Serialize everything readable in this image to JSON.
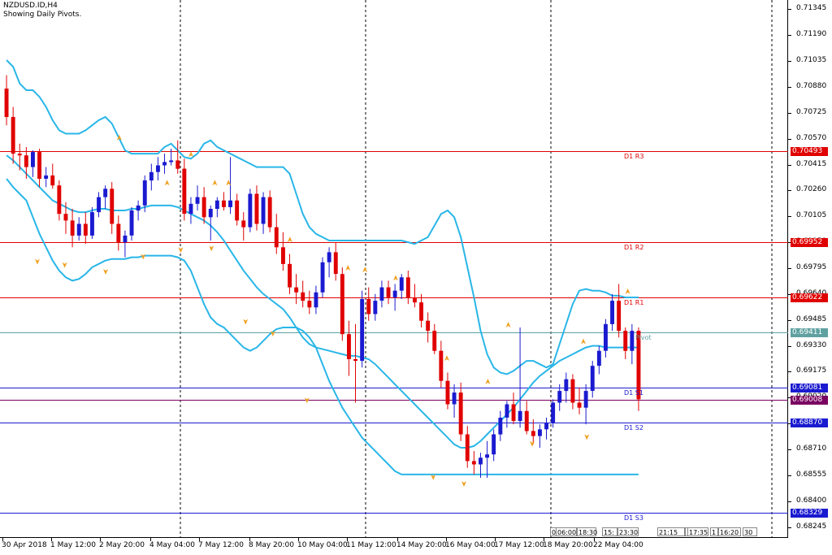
{
  "header": {
    "symbol_line": "NZDUSD.ID,H4",
    "indicator_line": "Showing Daily Pivots."
  },
  "price_axis": {
    "labels": [
      "0.71345",
      "0.71190",
      "0.71035",
      "0.70880",
      "0.70725",
      "0.70570",
      "0.70415",
      "0.70260",
      "0.70105",
      "0.69950",
      "0.69795",
      "0.69640",
      "0.69485",
      "0.69330",
      "0.69175",
      "0.69020",
      "0.68865",
      "0.68710",
      "0.68555",
      "0.68400",
      "0.68245"
    ]
  },
  "time_axis": {
    "labels": [
      "30 Apr 2018",
      "1 May 12:00",
      "2 May 20:00",
      "4 May 04:00",
      "7 May 12:00",
      "8 May 20:00",
      "10 May 04:00",
      "11 May 12:00",
      "14 May 20:00",
      "16 May 04:00",
      "17 May 12:00",
      "18 May 20:00",
      "22 May 04:00"
    ]
  },
  "pivots": {
    "r3": {
      "name": "D1 R3",
      "value": "0.70493",
      "value_num": 0.70493,
      "color": "#e00000"
    },
    "r2": {
      "name": "D1 R2",
      "value": "0.69952",
      "value_num": 0.69952,
      "color": "#e00000"
    },
    "r1": {
      "name": "D1 R1",
      "value": "0.69622",
      "value_num": 0.69622,
      "color": "#e00000"
    },
    "pivot": {
      "name": "Pivot",
      "value": "0.69411",
      "value_num": 0.69411,
      "color": "#5fa0a0"
    },
    "s1": {
      "name": "D1 S1",
      "value": "0.69081",
      "value_num": 0.69081,
      "color": "#1a1ad0"
    },
    "current": {
      "value": "0.69008",
      "value_num": 0.69008,
      "color": "#7a0060"
    },
    "s2": {
      "name": "D1 S2",
      "value": "0.68870",
      "value_num": 0.6887,
      "color": "#1a1ad0"
    },
    "s3": {
      "name": "D1 S3",
      "value": "0.68329",
      "value_num": 0.68329,
      "color": "#1a1ad0"
    }
  },
  "countdowns": [
    "0",
    "06:00",
    "18:30",
    "15:",
    "23:30",
    "21:15",
    "15",
    "17:35",
    "1",
    "16:20",
    "30"
  ],
  "colors": {
    "bull_candle": "#1a1ad0",
    "bear_candle": "#e00000",
    "bollinger": "#29b6e8",
    "fractal": "#f0a020",
    "grid_dash": "#000000"
  },
  "chart_data": {
    "type": "candlestick",
    "symbol": "NZDUSD.ID",
    "timeframe": "H4",
    "ylim": [
      0.6818,
      0.714
    ],
    "bars": 97,
    "candles": [
      {
        "o": 0.7087,
        "h": 0.7095,
        "l": 0.7065,
        "c": 0.707
      },
      {
        "o": 0.707,
        "h": 0.7076,
        "l": 0.7042,
        "c": 0.7048
      },
      {
        "o": 0.7048,
        "h": 0.7054,
        "l": 0.7038,
        "c": 0.7047
      },
      {
        "o": 0.7047,
        "h": 0.7052,
        "l": 0.7033,
        "c": 0.704
      },
      {
        "o": 0.704,
        "h": 0.705,
        "l": 0.7034,
        "c": 0.7049
      },
      {
        "o": 0.7049,
        "h": 0.7051,
        "l": 0.7028,
        "c": 0.7033
      },
      {
        "o": 0.7033,
        "h": 0.704,
        "l": 0.7028,
        "c": 0.7035
      },
      {
        "o": 0.7035,
        "h": 0.7042,
        "l": 0.7027,
        "c": 0.7029
      },
      {
        "o": 0.7029,
        "h": 0.7032,
        "l": 0.7008,
        "c": 0.7012
      },
      {
        "o": 0.7012,
        "h": 0.7019,
        "l": 0.7,
        "c": 0.7008
      },
      {
        "o": 0.7008,
        "h": 0.7015,
        "l": 0.6992,
        "c": 0.6999
      },
      {
        "o": 0.6999,
        "h": 0.701,
        "l": 0.6996,
        "c": 0.7006
      },
      {
        "o": 0.7006,
        "h": 0.7013,
        "l": 0.6994,
        "c": 0.6999
      },
      {
        "o": 0.6999,
        "h": 0.7016,
        "l": 0.6997,
        "c": 0.7013
      },
      {
        "o": 0.7013,
        "h": 0.7025,
        "l": 0.701,
        "c": 0.7022
      },
      {
        "o": 0.7022,
        "h": 0.7029,
        "l": 0.7015,
        "c": 0.7027
      },
      {
        "o": 0.7027,
        "h": 0.7031,
        "l": 0.7,
        "c": 0.7006
      },
      {
        "o": 0.7006,
        "h": 0.7011,
        "l": 0.699,
        "c": 0.6995
      },
      {
        "o": 0.6995,
        "h": 0.7002,
        "l": 0.6986,
        "c": 0.6999
      },
      {
        "o": 0.6999,
        "h": 0.7016,
        "l": 0.6996,
        "c": 0.7014
      },
      {
        "o": 0.7014,
        "h": 0.702,
        "l": 0.7008,
        "c": 0.7017
      },
      {
        "o": 0.7017,
        "h": 0.7035,
        "l": 0.7013,
        "c": 0.7032
      },
      {
        "o": 0.7032,
        "h": 0.7042,
        "l": 0.7026,
        "c": 0.7037
      },
      {
        "o": 0.7037,
        "h": 0.7046,
        "l": 0.7032,
        "c": 0.7041
      },
      {
        "o": 0.7041,
        "h": 0.7048,
        "l": 0.7036,
        "c": 0.7043
      },
      {
        "o": 0.7043,
        "h": 0.7051,
        "l": 0.7041,
        "c": 0.7044
      },
      {
        "o": 0.7044,
        "h": 0.7056,
        "l": 0.7036,
        "c": 0.7039
      },
      {
        "o": 0.7039,
        "h": 0.7045,
        "l": 0.7008,
        "c": 0.7012
      },
      {
        "o": 0.7012,
        "h": 0.7022,
        "l": 0.7006,
        "c": 0.7018
      },
      {
        "o": 0.7018,
        "h": 0.7029,
        "l": 0.7014,
        "c": 0.7022
      },
      {
        "o": 0.7022,
        "h": 0.7028,
        "l": 0.7006,
        "c": 0.701
      },
      {
        "o": 0.701,
        "h": 0.7017,
        "l": 0.6996,
        "c": 0.7015
      },
      {
        "o": 0.7015,
        "h": 0.7022,
        "l": 0.701,
        "c": 0.702
      },
      {
        "o": 0.702,
        "h": 0.7025,
        "l": 0.7014,
        "c": 0.7016
      },
      {
        "o": 0.7016,
        "h": 0.7046,
        "l": 0.7012,
        "c": 0.702
      },
      {
        "o": 0.702,
        "h": 0.7024,
        "l": 0.7005,
        "c": 0.7008
      },
      {
        "o": 0.7008,
        "h": 0.7013,
        "l": 0.6996,
        "c": 0.7004
      },
      {
        "o": 0.7004,
        "h": 0.7027,
        "l": 0.7001,
        "c": 0.7024
      },
      {
        "o": 0.7024,
        "h": 0.7029,
        "l": 0.7002,
        "c": 0.7006
      },
      {
        "o": 0.7006,
        "h": 0.7025,
        "l": 0.7,
        "c": 0.7022
      },
      {
        "o": 0.7022,
        "h": 0.7026,
        "l": 0.7001,
        "c": 0.7004
      },
      {
        "o": 0.7004,
        "h": 0.7012,
        "l": 0.6988,
        "c": 0.6992
      },
      {
        "o": 0.6992,
        "h": 0.7001,
        "l": 0.6978,
        "c": 0.6982
      },
      {
        "o": 0.6982,
        "h": 0.6988,
        "l": 0.6964,
        "c": 0.6968
      },
      {
        "o": 0.6968,
        "h": 0.6976,
        "l": 0.6958,
        "c": 0.6965
      },
      {
        "o": 0.6965,
        "h": 0.6972,
        "l": 0.6956,
        "c": 0.696
      },
      {
        "o": 0.696,
        "h": 0.6966,
        "l": 0.6952,
        "c": 0.6956
      },
      {
        "o": 0.6956,
        "h": 0.6969,
        "l": 0.6952,
        "c": 0.6965
      },
      {
        "o": 0.6965,
        "h": 0.6986,
        "l": 0.6962,
        "c": 0.6983
      },
      {
        "o": 0.6983,
        "h": 0.6992,
        "l": 0.6974,
        "c": 0.6989
      },
      {
        "o": 0.6989,
        "h": 0.6995,
        "l": 0.6972,
        "c": 0.6976
      },
      {
        "o": 0.6976,
        "h": 0.698,
        "l": 0.6936,
        "c": 0.694
      },
      {
        "o": 0.694,
        "h": 0.6948,
        "l": 0.6915,
        "c": 0.6925
      },
      {
        "o": 0.6925,
        "h": 0.6946,
        "l": 0.6899,
        "c": 0.6924
      },
      {
        "o": 0.6924,
        "h": 0.6966,
        "l": 0.692,
        "c": 0.6961
      },
      {
        "o": 0.6961,
        "h": 0.6968,
        "l": 0.6948,
        "c": 0.6952
      },
      {
        "o": 0.6952,
        "h": 0.6964,
        "l": 0.6948,
        "c": 0.696
      },
      {
        "o": 0.696,
        "h": 0.6972,
        "l": 0.6956,
        "c": 0.6968
      },
      {
        "o": 0.6968,
        "h": 0.6972,
        "l": 0.6958,
        "c": 0.6962
      },
      {
        "o": 0.6962,
        "h": 0.697,
        "l": 0.6954,
        "c": 0.6966
      },
      {
        "o": 0.6966,
        "h": 0.6976,
        "l": 0.6961,
        "c": 0.6974
      },
      {
        "o": 0.6974,
        "h": 0.6978,
        "l": 0.6958,
        "c": 0.6962
      },
      {
        "o": 0.6962,
        "h": 0.697,
        "l": 0.6956,
        "c": 0.6959
      },
      {
        "o": 0.6959,
        "h": 0.6964,
        "l": 0.6944,
        "c": 0.6948
      },
      {
        "o": 0.6948,
        "h": 0.6953,
        "l": 0.6935,
        "c": 0.6942
      },
      {
        "o": 0.6942,
        "h": 0.6946,
        "l": 0.6928,
        "c": 0.693
      },
      {
        "o": 0.693,
        "h": 0.6936,
        "l": 0.6908,
        "c": 0.6912
      },
      {
        "o": 0.6912,
        "h": 0.6917,
        "l": 0.6895,
        "c": 0.6898
      },
      {
        "o": 0.6898,
        "h": 0.691,
        "l": 0.689,
        "c": 0.6905
      },
      {
        "o": 0.6905,
        "h": 0.6911,
        "l": 0.6876,
        "c": 0.688
      },
      {
        "o": 0.688,
        "h": 0.6885,
        "l": 0.686,
        "c": 0.6864
      },
      {
        "o": 0.6864,
        "h": 0.687,
        "l": 0.6856,
        "c": 0.6862
      },
      {
        "o": 0.6862,
        "h": 0.6869,
        "l": 0.6854,
        "c": 0.6866
      },
      {
        "o": 0.6866,
        "h": 0.6876,
        "l": 0.6854,
        "c": 0.6868
      },
      {
        "o": 0.6868,
        "h": 0.6883,
        "l": 0.6864,
        "c": 0.688
      },
      {
        "o": 0.688,
        "h": 0.6894,
        "l": 0.6876,
        "c": 0.689
      },
      {
        "o": 0.689,
        "h": 0.69,
        "l": 0.6884,
        "c": 0.6898
      },
      {
        "o": 0.6898,
        "h": 0.6905,
        "l": 0.6886,
        "c": 0.6888
      },
      {
        "o": 0.6888,
        "h": 0.6944,
        "l": 0.6884,
        "c": 0.6894
      },
      {
        "o": 0.6894,
        "h": 0.69,
        "l": 0.688,
        "c": 0.6882
      },
      {
        "o": 0.6882,
        "h": 0.6889,
        "l": 0.6874,
        "c": 0.6879
      },
      {
        "o": 0.6879,
        "h": 0.6886,
        "l": 0.6872,
        "c": 0.6883
      },
      {
        "o": 0.6883,
        "h": 0.689,
        "l": 0.6877,
        "c": 0.6887
      },
      {
        "o": 0.6887,
        "h": 0.6901,
        "l": 0.6884,
        "c": 0.6899
      },
      {
        "o": 0.6899,
        "h": 0.691,
        "l": 0.6894,
        "c": 0.6906
      },
      {
        "o": 0.6906,
        "h": 0.6917,
        "l": 0.6899,
        "c": 0.6913
      },
      {
        "o": 0.6913,
        "h": 0.6916,
        "l": 0.6895,
        "c": 0.6899
      },
      {
        "o": 0.6899,
        "h": 0.6908,
        "l": 0.6892,
        "c": 0.6896
      },
      {
        "o": 0.6896,
        "h": 0.691,
        "l": 0.6886,
        "c": 0.6906
      },
      {
        "o": 0.6906,
        "h": 0.6924,
        "l": 0.6902,
        "c": 0.6921
      },
      {
        "o": 0.6921,
        "h": 0.6933,
        "l": 0.6916,
        "c": 0.693
      },
      {
        "o": 0.693,
        "h": 0.6949,
        "l": 0.6926,
        "c": 0.6946
      },
      {
        "o": 0.6946,
        "h": 0.6964,
        "l": 0.6942,
        "c": 0.696
      },
      {
        "o": 0.696,
        "h": 0.697,
        "l": 0.6938,
        "c": 0.6942
      },
      {
        "o": 0.6942,
        "h": 0.6944,
        "l": 0.6925,
        "c": 0.693
      },
      {
        "o": 0.693,
        "h": 0.6946,
        "l": 0.6922,
        "c": 0.6942
      },
      {
        "o": 0.6942,
        "h": 0.6944,
        "l": 0.6894,
        "c": 0.6901
      }
    ],
    "bollinger_upper": [
      0.7104,
      0.71,
      0.709,
      0.7086,
      0.7086,
      0.7082,
      0.7076,
      0.7068,
      0.7062,
      0.706,
      0.706,
      0.706,
      0.7062,
      0.7065,
      0.7068,
      0.707,
      0.7066,
      0.7058,
      0.705,
      0.7048,
      0.7048,
      0.7048,
      0.7048,
      0.7048,
      0.7052,
      0.7054,
      0.705,
      0.7046,
      0.7045,
      0.7048,
      0.7054,
      0.7056,
      0.7052,
      0.705,
      0.7048,
      0.7046,
      0.7044,
      0.7042,
      0.704,
      0.704,
      0.704,
      0.704,
      0.704,
      0.7036,
      0.7024,
      0.7012,
      0.7004,
      0.7,
      0.6998,
      0.6996,
      0.6996,
      0.6996,
      0.6996,
      0.6996,
      0.6996,
      0.6996,
      0.6996,
      0.6996,
      0.6996,
      0.6996,
      0.6996,
      0.6995,
      0.6994,
      0.6996,
      0.6998,
      0.7005,
      0.7012,
      0.7014,
      0.701,
      0.6998,
      0.698,
      0.6962,
      0.6942,
      0.6928,
      0.692,
      0.6917,
      0.6916,
      0.6918,
      0.6921,
      0.6924,
      0.6924,
      0.6922,
      0.692,
      0.6922,
      0.6934,
      0.6946,
      0.6958,
      0.6966,
      0.6967,
      0.6966,
      0.6966,
      0.6965,
      0.6963,
      0.6963,
      0.6962,
      0.6962,
      0.6962
    ],
    "bollinger_middle": [
      0.7047,
      0.7044,
      0.704,
      0.7036,
      0.7032,
      0.7028,
      0.7024,
      0.702,
      0.7018,
      0.7016,
      0.7014,
      0.7013,
      0.7013,
      0.7014,
      0.7015,
      0.7015,
      0.7014,
      0.7014,
      0.7014,
      0.7015,
      0.7015,
      0.7016,
      0.7017,
      0.7017,
      0.7017,
      0.7017,
      0.7016,
      0.7014,
      0.7012,
      0.701,
      0.7008,
      0.7005,
      0.7001,
      0.6996,
      0.699,
      0.6984,
      0.6978,
      0.6973,
      0.6968,
      0.6964,
      0.6961,
      0.6958,
      0.6955,
      0.695,
      0.6944,
      0.6938,
      0.6934,
      0.6932,
      0.6931,
      0.693,
      0.6929,
      0.6928,
      0.6927,
      0.6927,
      0.6926,
      0.6925,
      0.6922,
      0.6918,
      0.6914,
      0.691,
      0.6906,
      0.6902,
      0.6898,
      0.6894,
      0.689,
      0.6886,
      0.6882,
      0.6878,
      0.6874,
      0.6872,
      0.6872,
      0.6873,
      0.6876,
      0.688,
      0.6884,
      0.6888,
      0.6892,
      0.6896,
      0.6901,
      0.6906,
      0.6911,
      0.6915,
      0.6918,
      0.6921,
      0.6924,
      0.6926,
      0.6928,
      0.693,
      0.6932,
      0.6933,
      0.6933,
      0.6932,
      0.6932,
      0.6932,
      0.6932,
      0.6932,
      0.6932
    ],
    "bollinger_lower": [
      0.7033,
      0.7028,
      0.7024,
      0.702,
      0.701,
      0.7,
      0.6992,
      0.6984,
      0.6978,
      0.6974,
      0.6972,
      0.6973,
      0.6976,
      0.698,
      0.6982,
      0.6984,
      0.6985,
      0.6985,
      0.6985,
      0.6986,
      0.6986,
      0.6987,
      0.6987,
      0.6987,
      0.6987,
      0.6987,
      0.6986,
      0.6984,
      0.6978,
      0.6968,
      0.6958,
      0.695,
      0.6946,
      0.6944,
      0.694,
      0.6936,
      0.6932,
      0.693,
      0.6932,
      0.6936,
      0.694,
      0.6943,
      0.6944,
      0.6944,
      0.6944,
      0.6942,
      0.6938,
      0.6932,
      0.6922,
      0.6912,
      0.6904,
      0.6896,
      0.689,
      0.6884,
      0.6878,
      0.6874,
      0.687,
      0.6866,
      0.6862,
      0.6858,
      0.6856,
      0.6856,
      0.6856,
      0.6856,
      0.6856,
      0.6856,
      0.6856,
      0.6856,
      0.6856,
      0.6856,
      0.6856,
      0.6856,
      0.6856,
      0.6856,
      0.6856,
      0.6856,
      0.6856,
      0.6856,
      0.6856,
      0.6856,
      0.6856,
      0.6856,
      0.6856,
      0.6856,
      0.6856,
      0.6856,
      0.6856,
      0.6856,
      0.6856,
      0.6856,
      0.6856,
      0.6856,
      0.6856,
      0.6856,
      0.6856,
      0.6856,
      0.6856
    ],
    "fractals_up": [
      [
        34,
        0.7056
      ],
      [
        48,
        0.7029
      ],
      [
        55,
        0.7046
      ],
      [
        62,
        0.7029
      ],
      [
        66,
        0.7029
      ],
      [
        84,
        0.6995
      ],
      [
        101,
        0.6978
      ],
      [
        106,
        0.6977
      ],
      [
        115,
        0.6972
      ],
      [
        130,
        0.6924
      ],
      [
        142,
        0.691
      ],
      [
        148,
        0.6944
      ],
      [
        170,
        0.6934
      ],
      [
        183,
        0.6964
      ]
    ],
    "fractals_down": [
      [
        10,
        0.6985
      ],
      [
        18,
        0.6983
      ],
      [
        30,
        0.6979
      ],
      [
        41,
        0.6988
      ],
      [
        52,
        0.6992
      ],
      [
        61,
        0.6993
      ],
      [
        71,
        0.6949
      ],
      [
        79,
        0.6942
      ],
      [
        89,
        0.6902
      ],
      [
        126,
        0.6856
      ],
      [
        135,
        0.6852
      ],
      [
        155,
        0.6876
      ],
      [
        171,
        0.688
      ]
    ]
  }
}
